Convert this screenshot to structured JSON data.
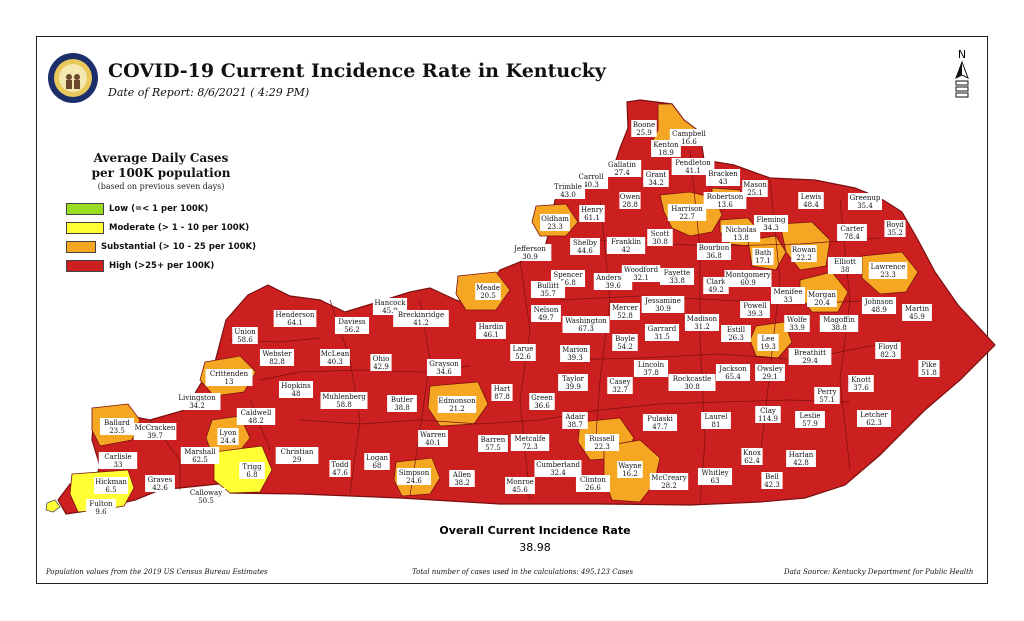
{
  "header": {
    "title": "COVID-19 Current Incidence Rate in Kentucky",
    "report_date": "Date of Report: 8/6/2021 ( 4:29 PM)"
  },
  "compass": {
    "label": "N"
  },
  "seal": {
    "icon": "kentucky-state-seal-icon"
  },
  "legend": {
    "title_line1": "Average Daily Cases",
    "title_line2": "per 100K population",
    "note": "(based on previous seven days)",
    "items": [
      {
        "label": "Low (=< 1 per 100K)",
        "color": "#99dd22"
      },
      {
        "label": "Moderate (> 1 - 10 per 100K)",
        "color": "#ffff33"
      },
      {
        "label": "Substantial (> 10 - 25 per 100K)",
        "color": "#f5a623"
      },
      {
        "label": "High (>25+ per 100K)",
        "color": "#cc1f1f"
      }
    ]
  },
  "colors": {
    "high": "#cc1f1f",
    "substantial": "#f5a623",
    "moderate": "#ffff33",
    "border": "#7a1010"
  },
  "counties": [
    {
      "name": "Boone",
      "value": "25.9",
      "category": "high"
    },
    {
      "name": "Campbell",
      "value": "16.6",
      "category": "substantial"
    },
    {
      "name": "Kenton",
      "value": "18.9",
      "category": "substantial"
    },
    {
      "name": "Gallatin",
      "value": "27.4",
      "category": "high"
    },
    {
      "name": "Carroll",
      "value": "40.3",
      "category": "high"
    },
    {
      "name": "Trimble",
      "value": "43.0",
      "category": "high"
    },
    {
      "name": "Grant",
      "value": "34.2",
      "category": "high"
    },
    {
      "name": "Pendleton",
      "value": "41.1",
      "category": "high"
    },
    {
      "name": "Bracken",
      "value": "43",
      "category": "high"
    },
    {
      "name": "Mason",
      "value": "25.1",
      "category": "high"
    },
    {
      "name": "Robertson",
      "value": "13.6",
      "category": "substantial"
    },
    {
      "name": "Owen",
      "value": "28.8",
      "category": "high"
    },
    {
      "name": "Henry",
      "value": "61.1",
      "category": "high"
    },
    {
      "name": "Oldham",
      "value": "23.3",
      "category": "substantial"
    },
    {
      "name": "Harrison",
      "value": "22.7",
      "category": "substantial"
    },
    {
      "name": "Lewis",
      "value": "48.4",
      "category": "high"
    },
    {
      "name": "Greenup",
      "value": "35.4",
      "category": "high"
    },
    {
      "name": "Boyd",
      "value": "35.2",
      "category": "high"
    },
    {
      "name": "Carter",
      "value": "78.4",
      "category": "high"
    },
    {
      "name": "Fleming",
      "value": "34.3",
      "category": "high"
    },
    {
      "name": "Nicholas",
      "value": "13.8",
      "category": "substantial"
    },
    {
      "name": "Scott",
      "value": "30.8",
      "category": "high"
    },
    {
      "name": "Franklin",
      "value": "42",
      "category": "high"
    },
    {
      "name": "Shelby",
      "value": "44.6",
      "category": "high"
    },
    {
      "name": "Jefferson",
      "value": "30.9",
      "category": "high"
    },
    {
      "name": "Bourbon",
      "value": "36.8",
      "category": "high"
    },
    {
      "name": "Bath",
      "value": "17.1",
      "category": "substantial"
    },
    {
      "name": "Rowan",
      "value": "22.2",
      "category": "substantial"
    },
    {
      "name": "Elliott",
      "value": "38",
      "category": "high"
    },
    {
      "name": "Lawrence",
      "value": "23.3",
      "category": "substantial"
    },
    {
      "name": "Spencer",
      "value": "56.8",
      "category": "high"
    },
    {
      "name": "Anderson",
      "value": "39.6",
      "category": "high"
    },
    {
      "name": "Woodford",
      "value": "32.1",
      "category": "high"
    },
    {
      "name": "Fayette",
      "value": "33.8",
      "category": "high"
    },
    {
      "name": "Clark",
      "value": "49.2",
      "category": "high"
    },
    {
      "name": "Montgomery",
      "value": "60.9",
      "category": "high"
    },
    {
      "name": "Menifee",
      "value": "33",
      "category": "high"
    },
    {
      "name": "Morgan",
      "value": "20.4",
      "category": "substantial"
    },
    {
      "name": "Johnson",
      "value": "48.9",
      "category": "high"
    },
    {
      "name": "Martin",
      "value": "45.9",
      "category": "high"
    },
    {
      "name": "Meade",
      "value": "20.5",
      "category": "substantial"
    },
    {
      "name": "Bullitt",
      "value": "35.7",
      "category": "high"
    },
    {
      "name": "Nelson",
      "value": "49.7",
      "category": "high"
    },
    {
      "name": "Mercer",
      "value": "52.8",
      "category": "high"
    },
    {
      "name": "Jessamine",
      "value": "30.9",
      "category": "high"
    },
    {
      "name": "Madison",
      "value": "31.2",
      "category": "high"
    },
    {
      "name": "Powell",
      "value": "39.3",
      "category": "high"
    },
    {
      "name": "Wolfe",
      "value": "33.9",
      "category": "high"
    },
    {
      "name": "Magoffin",
      "value": "38.8",
      "category": "high"
    },
    {
      "name": "Henderson",
      "value": "64.1",
      "category": "high"
    },
    {
      "name": "Daviess",
      "value": "56.2",
      "category": "high"
    },
    {
      "name": "Hancock",
      "value": "45.9",
      "category": "high"
    },
    {
      "name": "Breckinridge",
      "value": "41.2",
      "category": "high"
    },
    {
      "name": "Hardin",
      "value": "46.1",
      "category": "high"
    },
    {
      "name": "Washington",
      "value": "67.3",
      "category": "high"
    },
    {
      "name": "Boyle",
      "value": "54.2",
      "category": "high"
    },
    {
      "name": "Garrard",
      "value": "31.5",
      "category": "high"
    },
    {
      "name": "Estill",
      "value": "26.3",
      "category": "high"
    },
    {
      "name": "Lee",
      "value": "19.3",
      "category": "substantial"
    },
    {
      "name": "Breathitt",
      "value": "29.4",
      "category": "high"
    },
    {
      "name": "Floyd",
      "value": "82.3",
      "category": "high"
    },
    {
      "name": "Union",
      "value": "58.6",
      "category": "high"
    },
    {
      "name": "Webster",
      "value": "82.8",
      "category": "high"
    },
    {
      "name": "McLean",
      "value": "40.3",
      "category": "high"
    },
    {
      "name": "Ohio",
      "value": "42.9",
      "category": "high"
    },
    {
      "name": "Grayson",
      "value": "34.6",
      "category": "high"
    },
    {
      "name": "Larue",
      "value": "52.6",
      "category": "high"
    },
    {
      "name": "Marion",
      "value": "39.3",
      "category": "high"
    },
    {
      "name": "Lincoln",
      "value": "37.8",
      "category": "high"
    },
    {
      "name": "Jackson",
      "value": "65.4",
      "category": "high"
    },
    {
      "name": "Owsley",
      "value": "29.1",
      "category": "high"
    },
    {
      "name": "Knott",
      "value": "37.6",
      "category": "high"
    },
    {
      "name": "Pike",
      "value": "51.8",
      "category": "high"
    },
    {
      "name": "Crittenden",
      "value": "13",
      "category": "substantial"
    },
    {
      "name": "Hopkins",
      "value": "48",
      "category": "high"
    },
    {
      "name": "Muhlenberg",
      "value": "58.8",
      "category": "high"
    },
    {
      "name": "Butler",
      "value": "38.8",
      "category": "high"
    },
    {
      "name": "Edmonson",
      "value": "21.2",
      "category": "substantial"
    },
    {
      "name": "Hart",
      "value": "87.8",
      "category": "high"
    },
    {
      "name": "Taylor",
      "value": "39.9",
      "category": "high"
    },
    {
      "name": "Casey",
      "value": "32.7",
      "category": "high"
    },
    {
      "name": "Rockcastle",
      "value": "30.8",
      "category": "high"
    },
    {
      "name": "Perry",
      "value": "57.1",
      "category": "high"
    },
    {
      "name": "Livingston",
      "value": "34.2",
      "category": "high"
    },
    {
      "name": "Caldwell",
      "value": "48.2",
      "category": "high"
    },
    {
      "name": "Ballard",
      "value": "23.5",
      "category": "substantial"
    },
    {
      "name": "McCracken",
      "value": "39.7",
      "category": "high"
    },
    {
      "name": "Lyon",
      "value": "24.4",
      "category": "substantial"
    },
    {
      "name": "Green",
      "value": "36.6",
      "category": "high"
    },
    {
      "name": "Adair",
      "value": "38.7",
      "category": "high"
    },
    {
      "name": "Pulaski",
      "value": "47.7",
      "category": "high"
    },
    {
      "name": "Laurel",
      "value": "81",
      "category": "high"
    },
    {
      "name": "Clay",
      "value": "114.9",
      "category": "high"
    },
    {
      "name": "Leslie",
      "value": "57.9",
      "category": "high"
    },
    {
      "name": "Letcher",
      "value": "62.3",
      "category": "high"
    },
    {
      "name": "Carlisle",
      "value": "33",
      "category": "high"
    },
    {
      "name": "Marshall",
      "value": "62.5",
      "category": "high"
    },
    {
      "name": "Christian",
      "value": "29",
      "category": "high"
    },
    {
      "name": "Warren",
      "value": "40.1",
      "category": "high"
    },
    {
      "name": "Barren",
      "value": "57.5",
      "category": "high"
    },
    {
      "name": "Metcalfe",
      "value": "72.3",
      "category": "high"
    },
    {
      "name": "Russell",
      "value": "22.3",
      "category": "substantial"
    },
    {
      "name": "Harlan",
      "value": "42.8",
      "category": "high"
    },
    {
      "name": "Knox",
      "value": "62.4",
      "category": "high"
    },
    {
      "name": "Hickman",
      "value": "6.5",
      "category": "moderate"
    },
    {
      "name": "Graves",
      "value": "42.6",
      "category": "high"
    },
    {
      "name": "Trigg",
      "value": "6.8",
      "category": "moderate"
    },
    {
      "name": "Logan",
      "value": "68",
      "category": "high"
    },
    {
      "name": "Todd",
      "value": "47.6",
      "category": "high"
    },
    {
      "name": "Simpson",
      "value": "24.6",
      "category": "substantial"
    },
    {
      "name": "Allen",
      "value": "38.2",
      "category": "high"
    },
    {
      "name": "Cumberland",
      "value": "32.4",
      "category": "high"
    },
    {
      "name": "Wayne",
      "value": "16.2",
      "category": "substantial"
    },
    {
      "name": "Clinton",
      "value": "26.6",
      "category": "high"
    },
    {
      "name": "Monroe",
      "value": "45.6",
      "category": "high"
    },
    {
      "name": "McCreary",
      "value": "28.2",
      "category": "high"
    },
    {
      "name": "Whitley",
      "value": "63",
      "category": "high"
    },
    {
      "name": "Bell",
      "value": "42.3",
      "category": "high"
    },
    {
      "name": "Calloway",
      "value": "50.5",
      "category": "high"
    },
    {
      "name": "Fulton",
      "value": "9.6",
      "category": "moderate"
    }
  ],
  "summary": {
    "title": "Overall Current Incidence Rate",
    "value": "38.98"
  },
  "footer": {
    "left": "Population values from the 2019 US Census Bureau Estimates",
    "middle": "Total number of cases used in the calculations: 495,123 Cases",
    "right": "Data Source: Kentucky Department for Public Health"
  }
}
